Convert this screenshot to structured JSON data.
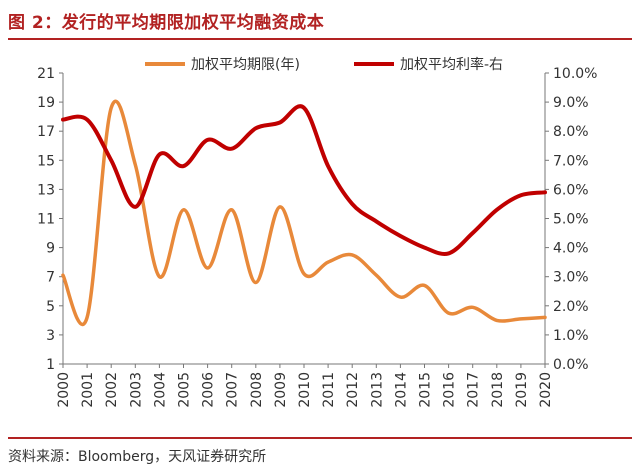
{
  "title": "图 2：发行的平均期限加权平均融资成本",
  "source": "资料来源：Bloomberg，天风证券研究所",
  "colors": {
    "term": "#e8893a",
    "rate": "#c00000",
    "accent": "#b22222"
  },
  "chart_data": {
    "type": "line",
    "categories": [
      "2000",
      "2001",
      "2002",
      "2003",
      "2004",
      "2005",
      "2006",
      "2007",
      "2008",
      "2009",
      "2010",
      "2011",
      "2012",
      "2013",
      "2014",
      "2015",
      "2016",
      "2017",
      "2018",
      "2019",
      "2020"
    ],
    "left_axis": {
      "ylim": [
        1,
        21
      ],
      "ticks": [
        "1",
        "3",
        "5",
        "7",
        "9",
        "11",
        "13",
        "15",
        "17",
        "19",
        "21"
      ]
    },
    "right_axis": {
      "ylim": [
        0,
        10
      ],
      "ticks": [
        "0.0%",
        "1.0%",
        "2.0%",
        "3.0%",
        "4.0%",
        "5.0%",
        "6.0%",
        "7.0%",
        "8.0%",
        "9.0%",
        "10.0%"
      ]
    },
    "legend_position": "top",
    "series": [
      {
        "name": "加权平均期限(年)",
        "axis": "left",
        "color": "#e8893a",
        "x": [
          2000,
          2001,
          2002,
          2003,
          2004,
          2005,
          2006,
          2007,
          2008,
          2009,
          2010,
          2011,
          2012,
          2013,
          2014,
          2015,
          2016,
          2017,
          2018,
          2019,
          2020
        ],
        "values": [
          7.1,
          4.2,
          18.6,
          14.7,
          7.0,
          11.6,
          7.6,
          11.6,
          6.6,
          11.8,
          7.2,
          8.0,
          8.5,
          7.1,
          5.6,
          6.4,
          4.5,
          4.9,
          4.0,
          4.1,
          4.2
        ]
      },
      {
        "name": "加权平均利率-右",
        "axis": "right",
        "color": "#c00000",
        "x": [
          2000,
          2001,
          2002,
          2003,
          2004,
          2005,
          2006,
          2007,
          2008,
          2009,
          2010,
          2011,
          2012,
          2013,
          2014,
          2015,
          2016,
          2017,
          2018,
          2019,
          2020
        ],
        "values": [
          8.4,
          8.4,
          7.0,
          5.4,
          7.2,
          6.8,
          7.7,
          7.4,
          8.1,
          8.3,
          8.8,
          6.8,
          5.5,
          4.9,
          4.4,
          4.0,
          3.8,
          4.5,
          5.3,
          5.8,
          5.9
        ]
      }
    ]
  }
}
